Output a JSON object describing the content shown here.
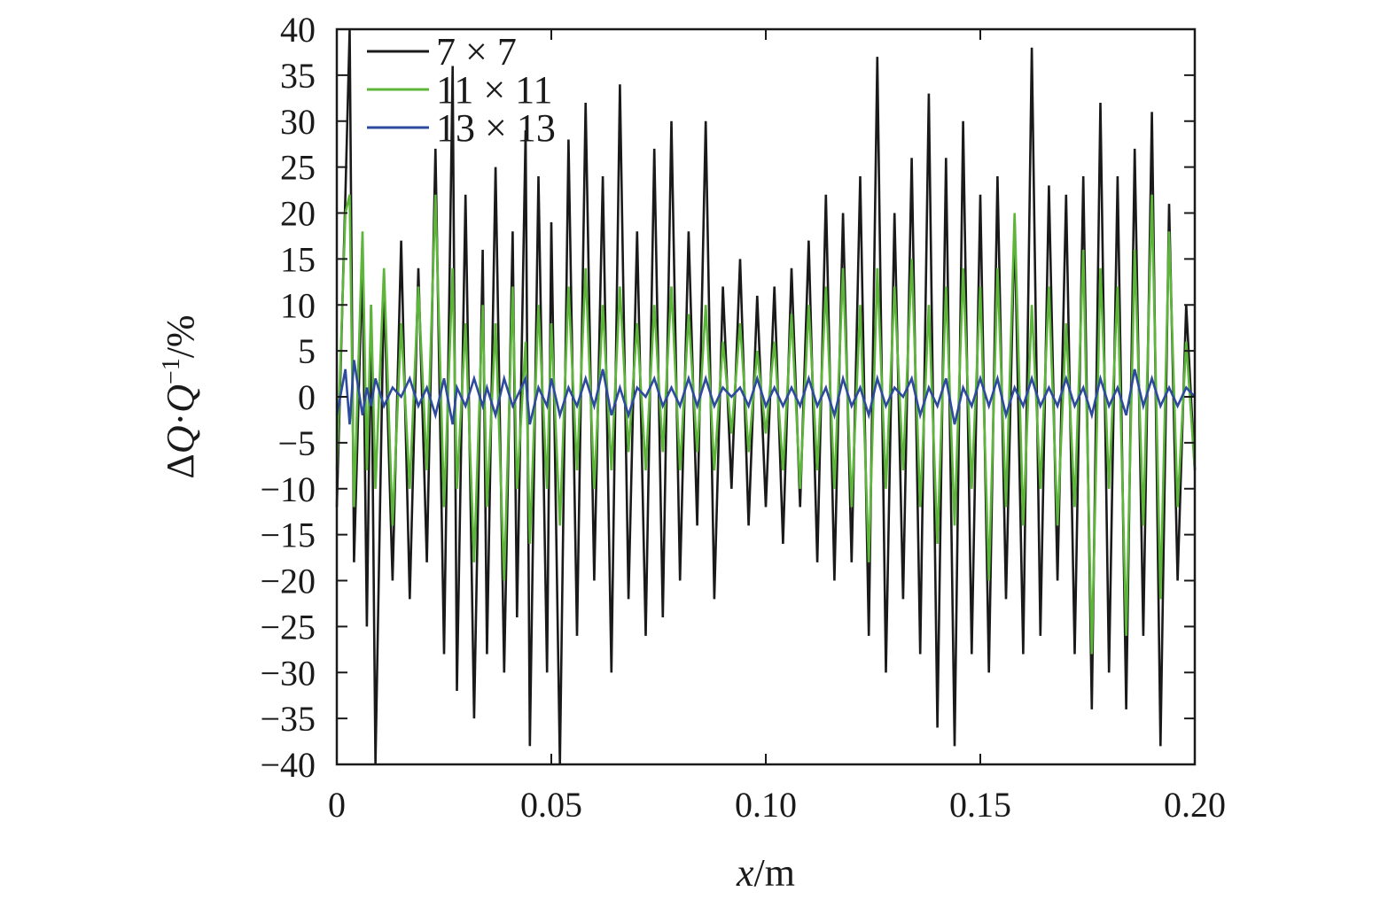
{
  "chart_data": {
    "type": "line",
    "xlabel_parts": [
      "x",
      "/m"
    ],
    "ylabel_parts": [
      "Δ",
      "Q",
      "·",
      "Q",
      "−1",
      "/%"
    ],
    "xlim": [
      0,
      0.2
    ],
    "ylim": [
      -40,
      40
    ],
    "xticks": [
      0,
      0.05,
      0.1,
      0.15,
      0.2
    ],
    "xtick_labels": [
      "0",
      "0.05",
      "0.10",
      "0.15",
      "0.20"
    ],
    "yticks": [
      40,
      35,
      30,
      25,
      20,
      15,
      10,
      5,
      0,
      -5,
      -10,
      -15,
      -20,
      -25,
      -30,
      -35,
      -40
    ],
    "ytick_labels": [
      "40",
      "35",
      "30",
      "25",
      "20",
      "15",
      "10",
      "5",
      "0",
      "−5",
      "−10",
      "−15",
      "−20",
      "−25",
      "−30",
      "−35",
      "−40"
    ],
    "legend_position": "top-left",
    "grid": false,
    "series": [
      {
        "name": "7 × 7",
        "color": "#1a1a1a",
        "x": [
          0,
          0.002,
          0.003,
          0.004,
          0.006,
          0.007,
          0.008,
          0.009,
          0.011,
          0.013,
          0.015,
          0.017,
          0.019,
          0.021,
          0.023,
          0.025,
          0.027,
          0.028,
          0.03,
          0.032,
          0.034,
          0.035,
          0.037,
          0.039,
          0.041,
          0.042,
          0.044,
          0.045,
          0.047,
          0.049,
          0.05,
          0.052,
          0.054,
          0.056,
          0.058,
          0.06,
          0.062,
          0.064,
          0.066,
          0.068,
          0.07,
          0.072,
          0.074,
          0.076,
          0.078,
          0.08,
          0.082,
          0.084,
          0.086,
          0.088,
          0.09,
          0.092,
          0.094,
          0.096,
          0.098,
          0.1,
          0.102,
          0.104,
          0.106,
          0.108,
          0.11,
          0.112,
          0.114,
          0.116,
          0.118,
          0.12,
          0.122,
          0.124,
          0.126,
          0.128,
          0.13,
          0.132,
          0.134,
          0.136,
          0.138,
          0.14,
          0.142,
          0.144,
          0.146,
          0.148,
          0.15,
          0.152,
          0.154,
          0.156,
          0.158,
          0.16,
          0.162,
          0.164,
          0.166,
          0.168,
          0.17,
          0.172,
          0.174,
          0.176,
          0.178,
          0.18,
          0.182,
          0.184,
          0.186,
          0.188,
          0.19,
          0.192,
          0.194,
          0.196,
          0.198,
          0.2
        ],
        "y": [
          -12,
          22,
          40,
          -18,
          15,
          -25,
          10,
          -40,
          12,
          -20,
          17,
          -22,
          14,
          -18,
          27,
          -28,
          36,
          -32,
          22,
          -35,
          16,
          -28,
          25,
          -30,
          18,
          -24,
          29,
          -38,
          24,
          -30,
          19,
          -40,
          28,
          -26,
          32,
          -20,
          24,
          -30,
          34,
          -22,
          18,
          -26,
          27,
          -24,
          30,
          -20,
          18,
          -14,
          30,
          -22,
          12,
          -10,
          15,
          -14,
          11,
          -12,
          12,
          -16,
          14,
          -12,
          17,
          -18,
          22,
          -20,
          20,
          -18,
          24,
          -26,
          37,
          -30,
          20,
          -22,
          26,
          -28,
          33,
          -36,
          26,
          -38,
          30,
          -28,
          22,
          -30,
          24,
          -22,
          19,
          -28,
          38,
          -26,
          23,
          -20,
          22,
          -28,
          24,
          -34,
          32,
          -30,
          24,
          -34,
          27,
          -26,
          31,
          -38,
          21,
          -20,
          10,
          -8
        ]
      },
      {
        "name": "11 × 11",
        "color": "#5db53a",
        "x": [
          0,
          0.002,
          0.003,
          0.004,
          0.006,
          0.007,
          0.008,
          0.009,
          0.011,
          0.013,
          0.015,
          0.017,
          0.019,
          0.021,
          0.023,
          0.025,
          0.027,
          0.028,
          0.03,
          0.032,
          0.034,
          0.035,
          0.037,
          0.039,
          0.041,
          0.042,
          0.044,
          0.045,
          0.047,
          0.049,
          0.05,
          0.052,
          0.054,
          0.056,
          0.058,
          0.06,
          0.062,
          0.064,
          0.066,
          0.068,
          0.07,
          0.072,
          0.074,
          0.076,
          0.078,
          0.08,
          0.082,
          0.084,
          0.086,
          0.088,
          0.09,
          0.092,
          0.094,
          0.096,
          0.098,
          0.1,
          0.102,
          0.104,
          0.106,
          0.108,
          0.11,
          0.112,
          0.114,
          0.116,
          0.118,
          0.12,
          0.122,
          0.124,
          0.126,
          0.128,
          0.13,
          0.132,
          0.134,
          0.136,
          0.138,
          0.14,
          0.142,
          0.144,
          0.146,
          0.148,
          0.15,
          0.152,
          0.154,
          0.156,
          0.158,
          0.16,
          0.162,
          0.164,
          0.166,
          0.168,
          0.17,
          0.172,
          0.174,
          0.176,
          0.178,
          0.18,
          0.182,
          0.184,
          0.186,
          0.188,
          0.19,
          0.192,
          0.194,
          0.196,
          0.198,
          0.2
        ],
        "y": [
          -8,
          20,
          22,
          -12,
          18,
          -8,
          10,
          -10,
          14,
          -14,
          8,
          -10,
          12,
          -8,
          22,
          -12,
          14,
          -10,
          8,
          -18,
          10,
          -12,
          8,
          -20,
          12,
          -10,
          6,
          -16,
          10,
          -10,
          8,
          -14,
          12,
          -8,
          14,
          -10,
          10,
          -8,
          12,
          -6,
          8,
          -8,
          10,
          -6,
          12,
          -8,
          9,
          -6,
          10,
          -8,
          6,
          -4,
          8,
          -6,
          5,
          -4,
          6,
          -8,
          9,
          -10,
          10,
          -8,
          12,
          -10,
          14,
          -12,
          10,
          -18,
          14,
          -10,
          12,
          -8,
          15,
          -12,
          10,
          -16,
          12,
          -14,
          14,
          -10,
          12,
          -20,
          14,
          -12,
          20,
          -14,
          10,
          -10,
          12,
          -14,
          8,
          -12,
          16,
          -28,
          14,
          -10,
          12,
          -26,
          16,
          -14,
          22,
          -22,
          18,
          -12,
          6,
          -8
        ]
      },
      {
        "name": "13 × 13",
        "color": "#2e4a9e",
        "x": [
          0,
          0.002,
          0.003,
          0.004,
          0.006,
          0.007,
          0.008,
          0.009,
          0.011,
          0.013,
          0.015,
          0.017,
          0.019,
          0.021,
          0.023,
          0.025,
          0.027,
          0.028,
          0.03,
          0.032,
          0.034,
          0.035,
          0.037,
          0.039,
          0.041,
          0.042,
          0.044,
          0.045,
          0.047,
          0.049,
          0.05,
          0.052,
          0.054,
          0.056,
          0.058,
          0.06,
          0.062,
          0.064,
          0.066,
          0.068,
          0.07,
          0.072,
          0.074,
          0.076,
          0.078,
          0.08,
          0.082,
          0.084,
          0.086,
          0.088,
          0.09,
          0.092,
          0.094,
          0.096,
          0.098,
          0.1,
          0.102,
          0.104,
          0.106,
          0.108,
          0.11,
          0.112,
          0.114,
          0.116,
          0.118,
          0.12,
          0.122,
          0.124,
          0.126,
          0.128,
          0.13,
          0.132,
          0.134,
          0.136,
          0.138,
          0.14,
          0.142,
          0.144,
          0.146,
          0.148,
          0.15,
          0.152,
          0.154,
          0.156,
          0.158,
          0.16,
          0.162,
          0.164,
          0.166,
          0.168,
          0.17,
          0.172,
          0.174,
          0.176,
          0.178,
          0.18,
          0.182,
          0.184,
          0.186,
          0.188,
          0.19,
          0.192,
          0.194,
          0.196,
          0.198,
          0.2
        ],
        "y": [
          -2,
          3,
          -3,
          4,
          -2,
          1,
          -1,
          2,
          -1,
          1,
          0,
          2,
          -1,
          1,
          -2,
          2,
          -3,
          1,
          -1,
          2,
          -1,
          1,
          -2,
          2,
          -1,
          0,
          2,
          -3,
          1,
          -1,
          2,
          -2,
          1,
          -1,
          2,
          -1,
          3,
          -2,
          1,
          -2,
          1,
          0,
          2,
          -1,
          1,
          -1,
          2,
          -1,
          2,
          -1,
          1,
          0,
          1,
          -1,
          2,
          -1,
          1,
          -1,
          1,
          -1,
          2,
          -1,
          1,
          -2,
          2,
          -1,
          1,
          -2,
          2,
          -1,
          1,
          0,
          2,
          -2,
          1,
          -1,
          2,
          -3,
          1,
          -1,
          2,
          -1,
          2,
          -2,
          1,
          -1,
          2,
          -1,
          1,
          -1,
          2,
          -1,
          1,
          -2,
          2,
          -1,
          1,
          -2,
          3,
          -1,
          2,
          -1,
          1,
          -1,
          1,
          0
        ]
      }
    ]
  }
}
